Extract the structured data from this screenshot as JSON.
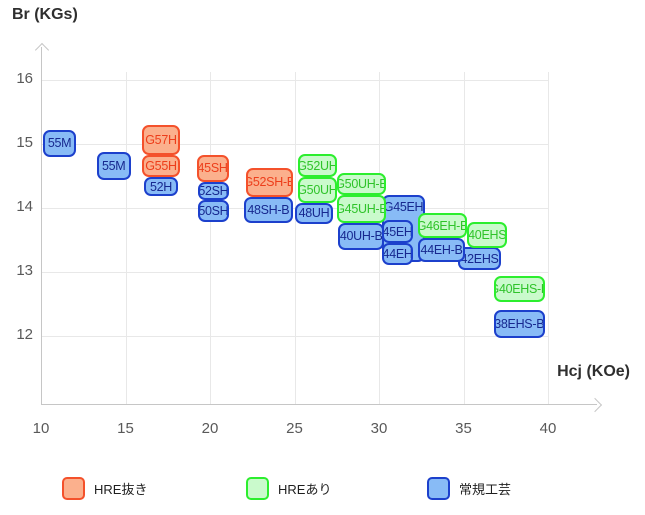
{
  "chart_data": {
    "type": "scatter",
    "title": "",
    "xlabel": "Hcj (KOe)",
    "ylabel": "Br (KGs)",
    "xlim": [
      10,
      43
    ],
    "ylim": [
      11,
      16.6
    ],
    "xticks": [
      10,
      15,
      20,
      25,
      30,
      35,
      40
    ],
    "yticks": [
      16,
      15,
      14,
      13,
      12
    ],
    "grid": true,
    "legend_position": "bottom",
    "groups": {
      "hre_removed": {
        "label": "HRE抜き",
        "fill": "#FBB08D",
        "border": "#F4512B",
        "text": "#ED3E1B"
      },
      "hre_present": {
        "label": "HREあり",
        "fill": "#CAFACC",
        "border": "#2CEE2E",
        "text": "#2FC32A"
      },
      "conventional": {
        "label": "常規工芸",
        "fill": "#88BBF6",
        "border": "#1C40CC",
        "text": "#17288F"
      }
    },
    "boxes": [
      {
        "label": "55M",
        "group": "conventional",
        "hcj": [
          10.1,
          12.1
        ],
        "br": [
          14.8,
          15.22
        ],
        "z": 5
      },
      {
        "label": "55M",
        "group": "conventional",
        "hcj": [
          13.3,
          15.3
        ],
        "br": [
          14.44,
          14.88
        ],
        "z": 5
      },
      {
        "label": "G57H",
        "group": "hre_removed",
        "hcj": [
          16.0,
          18.2
        ],
        "br": [
          14.83,
          15.3
        ],
        "z": 8
      },
      {
        "label": "G55H",
        "group": "hre_removed",
        "hcj": [
          16.0,
          18.2
        ],
        "br": [
          14.48,
          14.83
        ],
        "z": 7
      },
      {
        "label": "52H",
        "group": "conventional",
        "hcj": [
          16.1,
          18.1
        ],
        "br": [
          14.19,
          14.48
        ],
        "z": 6
      },
      {
        "label": "45SH",
        "group": "hre_removed",
        "hcj": [
          19.2,
          21.1
        ],
        "br": [
          14.41,
          14.83
        ],
        "z": 8
      },
      {
        "label": "52SH",
        "group": "conventional",
        "hcj": [
          19.3,
          21.1
        ],
        "br": [
          14.13,
          14.41
        ],
        "z": 7
      },
      {
        "label": "50SH",
        "group": "conventional",
        "hcj": [
          19.3,
          21.1
        ],
        "br": [
          13.78,
          14.13
        ],
        "z": 6
      },
      {
        "label": "G52SH-B",
        "group": "hre_removed",
        "hcj": [
          22.1,
          24.9
        ],
        "br": [
          14.17,
          14.63
        ],
        "z": 8
      },
      {
        "label": "48SH-B",
        "group": "conventional",
        "hcj": [
          22.0,
          24.9
        ],
        "br": [
          13.77,
          14.17
        ],
        "z": 7
      },
      {
        "label": "G52UH",
        "group": "hre_present",
        "hcj": [
          25.2,
          27.5
        ],
        "br": [
          14.48,
          14.84
        ],
        "z": 8
      },
      {
        "label": "G50UH",
        "group": "hre_present",
        "hcj": [
          25.2,
          27.5
        ],
        "br": [
          14.08,
          14.48
        ],
        "z": 7
      },
      {
        "label": "48UH",
        "group": "conventional",
        "hcj": [
          25.0,
          27.3
        ],
        "br": [
          13.75,
          14.08
        ],
        "z": 6
      },
      {
        "label": "G50UH-B",
        "group": "hre_present",
        "hcj": [
          27.5,
          30.4
        ],
        "br": [
          14.2,
          14.55
        ],
        "z": 8
      },
      {
        "label": "G45UH-B",
        "group": "hre_present",
        "hcj": [
          27.5,
          30.4
        ],
        "br": [
          13.77,
          14.2
        ],
        "z": 7
      },
      {
        "label": "40UH-B",
        "group": "conventional",
        "hcj": [
          27.6,
          30.3
        ],
        "br": [
          13.34,
          13.77
        ],
        "z": 6
      },
      {
        "label": "G45EH",
        "group": "conventional",
        "hcj": [
          30.2,
          32.7
        ],
        "br": [
          13.16,
          14.2
        ],
        "z": 4,
        "valign": "top"
      },
      {
        "label": "45EH",
        "group": "conventional",
        "hcj": [
          30.2,
          32.0
        ],
        "br": [
          13.45,
          13.81
        ],
        "z": 8
      },
      {
        "label": "44EH",
        "group": "conventional",
        "hcj": [
          30.2,
          32.0
        ],
        "br": [
          13.11,
          13.45
        ],
        "z": 7
      },
      {
        "label": "G46EH-B",
        "group": "hre_present",
        "hcj": [
          32.3,
          35.2
        ],
        "br": [
          13.53,
          13.92
        ],
        "z": 9
      },
      {
        "label": "44EH-B",
        "group": "conventional",
        "hcj": [
          32.3,
          35.1
        ],
        "br": [
          13.16,
          13.53
        ],
        "z": 8
      },
      {
        "label": "40EHS",
        "group": "hre_present",
        "hcj": [
          35.2,
          37.6
        ],
        "br": [
          13.38,
          13.78
        ],
        "z": 7
      },
      {
        "label": "42EHS",
        "group": "conventional",
        "hcj": [
          34.7,
          37.2
        ],
        "br": [
          13.03,
          13.39
        ],
        "z": 6
      },
      {
        "label": "G40EHS-B",
        "group": "hre_present",
        "hcj": [
          36.8,
          39.8
        ],
        "br": [
          12.53,
          12.94
        ],
        "z": 5
      },
      {
        "label": "38EHS-B",
        "group": "conventional",
        "hcj": [
          36.8,
          39.8
        ],
        "br": [
          11.97,
          12.41
        ],
        "z": 5
      }
    ]
  }
}
